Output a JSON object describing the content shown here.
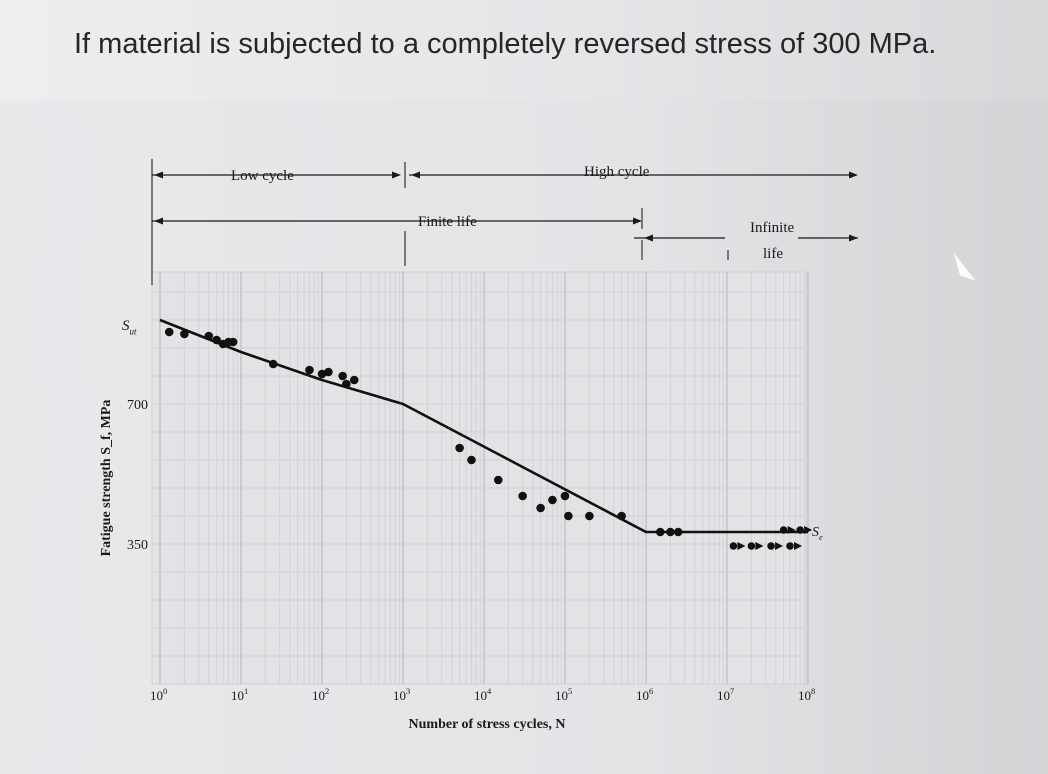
{
  "question": "If material is subjected to a completely reversed stress of 300 MPa.",
  "chart_data": {
    "type": "scatter",
    "title": "",
    "xlabel": "Number of stress cycles, N",
    "ylabel": "Fatigue strength S_f, MPa",
    "x_scale": "log",
    "xlim": [
      1,
      100000000
    ],
    "ylim": [
      0,
      1030
    ],
    "grid": true,
    "x_ticks": [
      {
        "value": 1,
        "base": "10",
        "exp": "0"
      },
      {
        "value": 10,
        "base": "10",
        "exp": "1"
      },
      {
        "value": 100,
        "base": "10",
        "exp": "2"
      },
      {
        "value": 1000,
        "base": "10",
        "exp": "3"
      },
      {
        "value": 10000,
        "base": "10",
        "exp": "4"
      },
      {
        "value": 100000,
        "base": "10",
        "exp": "5"
      },
      {
        "value": 1000000,
        "base": "10",
        "exp": "6"
      },
      {
        "value": 10000000,
        "base": "10",
        "exp": "7"
      },
      {
        "value": 100000000,
        "base": "10",
        "exp": "8"
      }
    ],
    "y_ticks": [
      {
        "value": 700,
        "label": "700"
      },
      {
        "value": 350,
        "label": "350"
      }
    ],
    "y_markers": [
      {
        "value": 900,
        "base": "S",
        "sub": "ut"
      }
    ],
    "curve": [
      {
        "x": 1,
        "y": 910
      },
      {
        "x": 10,
        "y": 830
      },
      {
        "x": 100,
        "y": 760
      },
      {
        "x": 1000,
        "y": 700
      },
      {
        "x": 1000000,
        "y": 380
      },
      {
        "x": 100000000,
        "y": 380
      }
    ],
    "endurance_label": {
      "base": "S",
      "sub": "e",
      "y": 380
    },
    "points": [
      {
        "x": 1.3,
        "y": 880
      },
      {
        "x": 2,
        "y": 875
      },
      {
        "x": 4,
        "y": 870
      },
      {
        "x": 5,
        "y": 860
      },
      {
        "x": 6,
        "y": 850
      },
      {
        "x": 7,
        "y": 855
      },
      {
        "x": 8,
        "y": 855
      },
      {
        "x": 25,
        "y": 800
      },
      {
        "x": 70,
        "y": 785
      },
      {
        "x": 100,
        "y": 775
      },
      {
        "x": 120,
        "y": 780
      },
      {
        "x": 180,
        "y": 770
      },
      {
        "x": 200,
        "y": 750
      },
      {
        "x": 250,
        "y": 760
      },
      {
        "x": 5000,
        "y": 590
      },
      {
        "x": 7000,
        "y": 560
      },
      {
        "x": 15000,
        "y": 510
      },
      {
        "x": 30000,
        "y": 470
      },
      {
        "x": 50000,
        "y": 440
      },
      {
        "x": 70000,
        "y": 460
      },
      {
        "x": 100000,
        "y": 470
      },
      {
        "x": 110000,
        "y": 420
      },
      {
        "x": 200000,
        "y": 420
      },
      {
        "x": 500000,
        "y": 420
      },
      {
        "x": 1500000,
        "y": 380
      },
      {
        "x": 2000000,
        "y": 380
      },
      {
        "x": 2500000,
        "y": 380
      }
    ],
    "runouts": [
      {
        "x": 12000000,
        "y": 345
      },
      {
        "x": 20000000,
        "y": 345
      },
      {
        "x": 35000000,
        "y": 345
      },
      {
        "x": 60000000,
        "y": 345
      },
      {
        "x": 50000000,
        "y": 385
      },
      {
        "x": 80000000,
        "y": 385
      }
    ],
    "regions": [
      {
        "label": "Low cycle",
        "from": 1,
        "to": 1000
      },
      {
        "label": "High cycle",
        "from": 1000,
        "to": 100000000
      },
      {
        "label": "Finite life",
        "from": 1,
        "to": 1000000
      },
      {
        "label": "Infinite life",
        "from": 1000000,
        "to": 100000000
      }
    ]
  }
}
